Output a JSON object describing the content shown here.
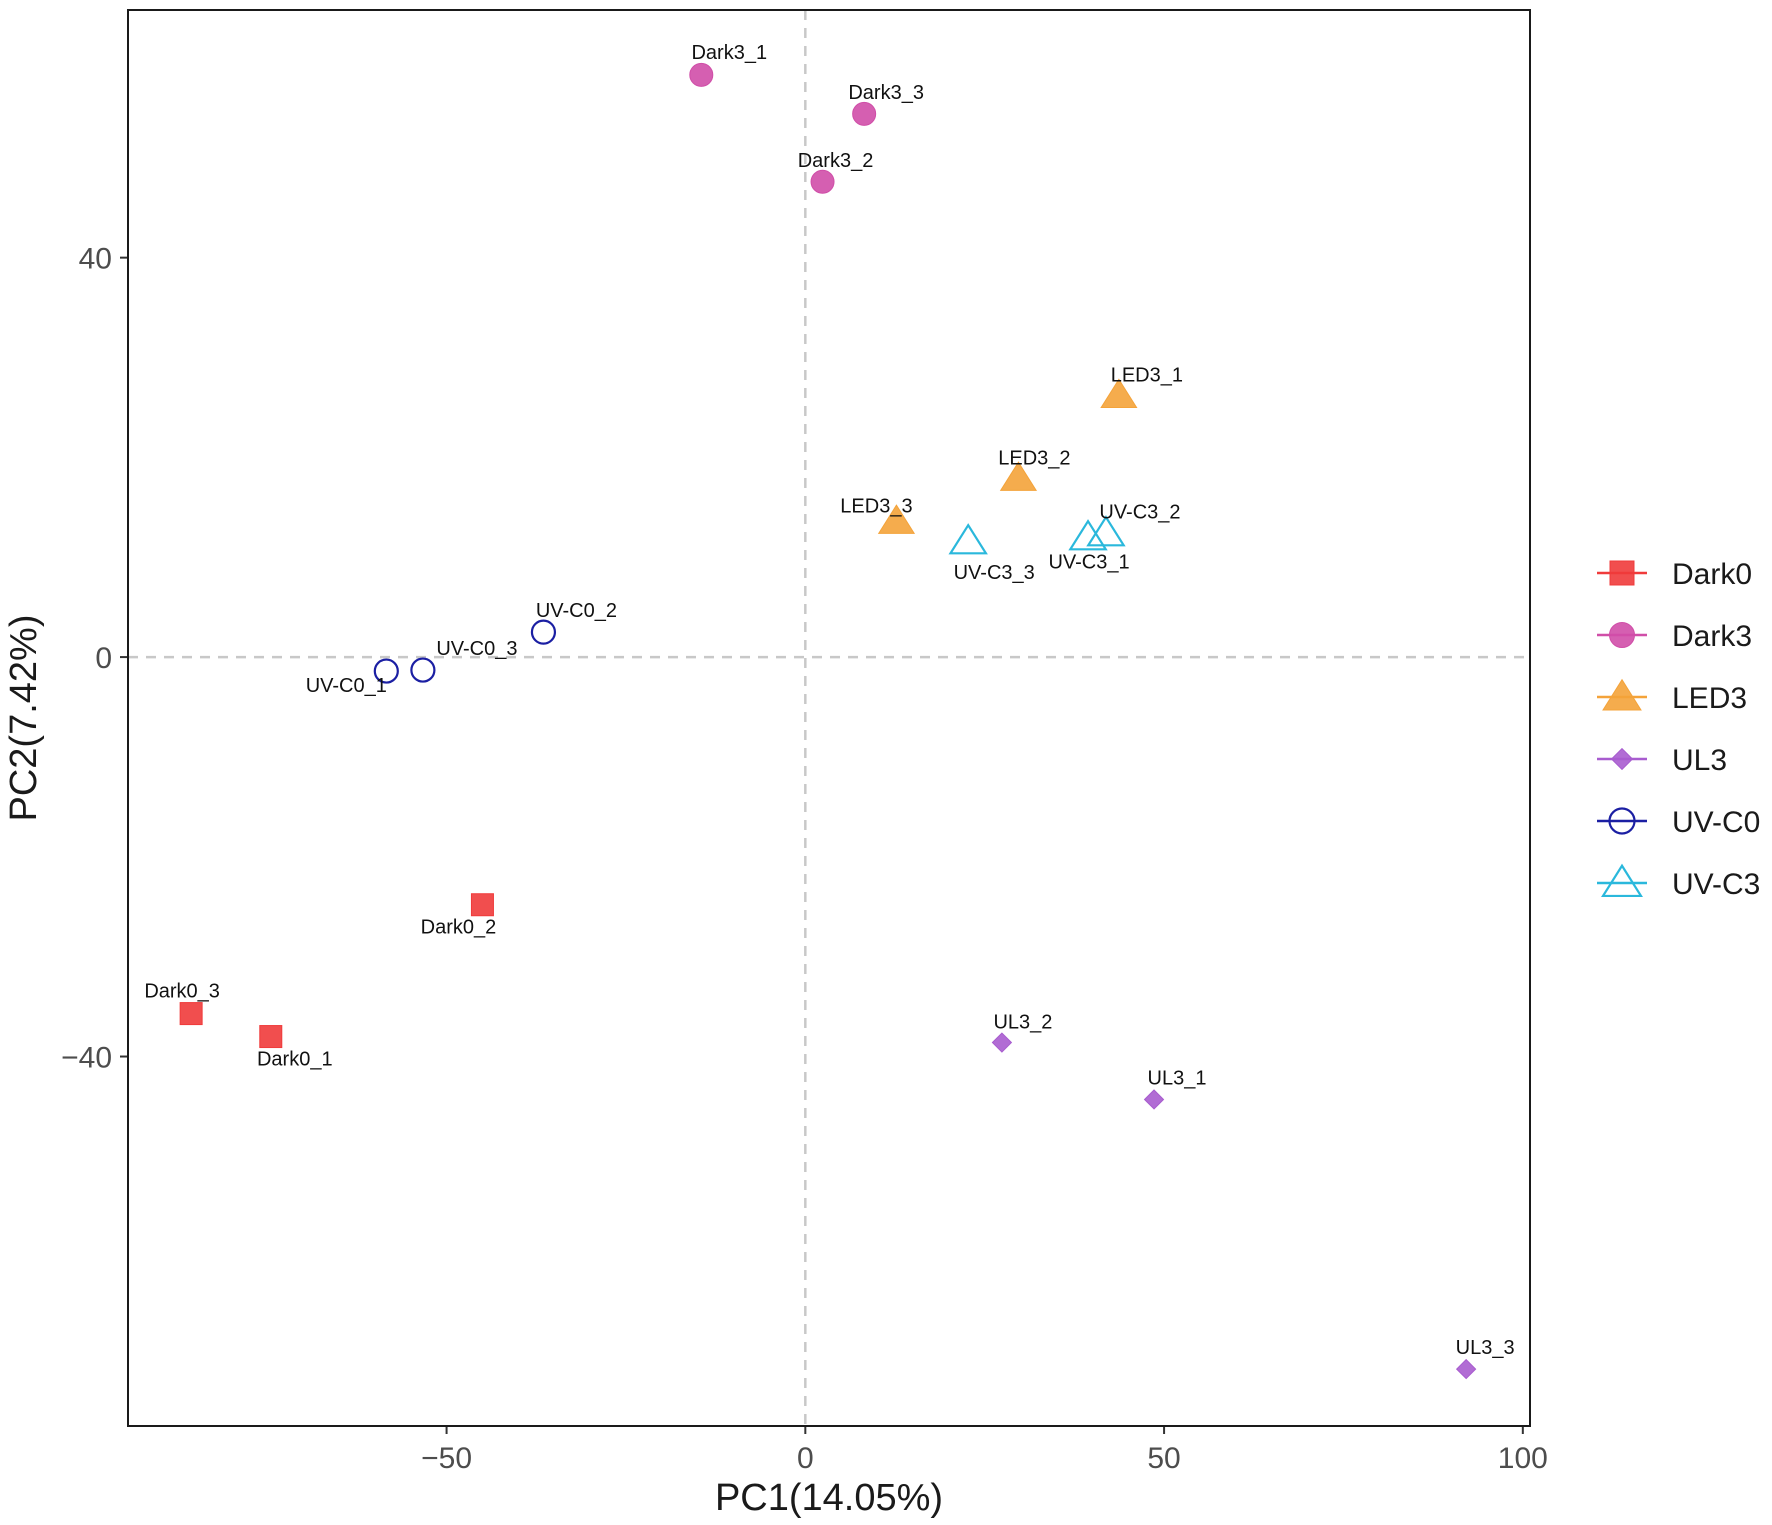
{
  "chart_data": {
    "type": "scatter",
    "title": "",
    "xlabel": "PC1(14.05%)",
    "ylabel": "PC2(7.42%)",
    "xlim": [
      -94.4,
      101
    ],
    "ylim": [
      -77,
      64.8
    ],
    "xticks": [
      -50,
      0,
      50,
      100
    ],
    "yticks": [
      -40,
      0,
      40
    ],
    "xtick_labels": [
      "−50",
      "0",
      "50",
      "100"
    ],
    "ytick_labels": [
      "−40",
      "0",
      "40"
    ],
    "reference_lines": {
      "x": 0,
      "y": 0
    },
    "legend_position": "right",
    "series": [
      {
        "name": "Dark0",
        "shape": "square",
        "color": "#f03b3b",
        "filled": true,
        "points": [
          {
            "label": "Dark0_1",
            "x": -74.5,
            "y": -38.0
          },
          {
            "label": "Dark0_2",
            "x": -45.0,
            "y": -24.8
          },
          {
            "label": "Dark0_3",
            "x": -85.6,
            "y": -35.7
          }
        ]
      },
      {
        "name": "Dark3",
        "shape": "circle",
        "color": "#d04ea8",
        "filled": true,
        "points": [
          {
            "label": "Dark3_1",
            "x": -14.5,
            "y": 58.3
          },
          {
            "label": "Dark3_2",
            "x": 2.4,
            "y": 47.6
          },
          {
            "label": "Dark3_3",
            "x": 8.2,
            "y": 54.4
          }
        ]
      },
      {
        "name": "LED3",
        "shape": "triangle",
        "color": "#f4a33a",
        "filled": true,
        "points": [
          {
            "label": "LED3_1",
            "x": 43.7,
            "y": 26.2
          },
          {
            "label": "LED3_2",
            "x": 29.7,
            "y": 17.9
          },
          {
            "label": "LED3_3",
            "x": 12.7,
            "y": 13.6
          }
        ]
      },
      {
        "name": "UL3",
        "shape": "diamond",
        "color": "#a85ccf",
        "filled": true,
        "points": [
          {
            "label": "UL3_1",
            "x": 48.6,
            "y": -44.3
          },
          {
            "label": "UL3_2",
            "x": 27.4,
            "y": -38.6
          },
          {
            "label": "UL3_3",
            "x": 92.1,
            "y": -71.3
          }
        ]
      },
      {
        "name": "UV-C0",
        "shape": "circle",
        "color": "#1b1fa3",
        "filled": false,
        "points": [
          {
            "label": "UV-C0_1",
            "x": -58.4,
            "y": -1.4
          },
          {
            "label": "UV-C0_2",
            "x": -36.5,
            "y": 2.5
          },
          {
            "label": "UV-C0_3",
            "x": -53.3,
            "y": -1.3
          }
        ]
      },
      {
        "name": "UV-C3",
        "shape": "triangle",
        "color": "#2ab8dc",
        "filled": false,
        "points": [
          {
            "label": "UV-C3_1",
            "x": 39.4,
            "y": 12.0
          },
          {
            "label": "UV-C3_2",
            "x": 41.9,
            "y": 12.4
          },
          {
            "label": "UV-C3_3",
            "x": 22.7,
            "y": 11.6
          }
        ]
      }
    ]
  }
}
